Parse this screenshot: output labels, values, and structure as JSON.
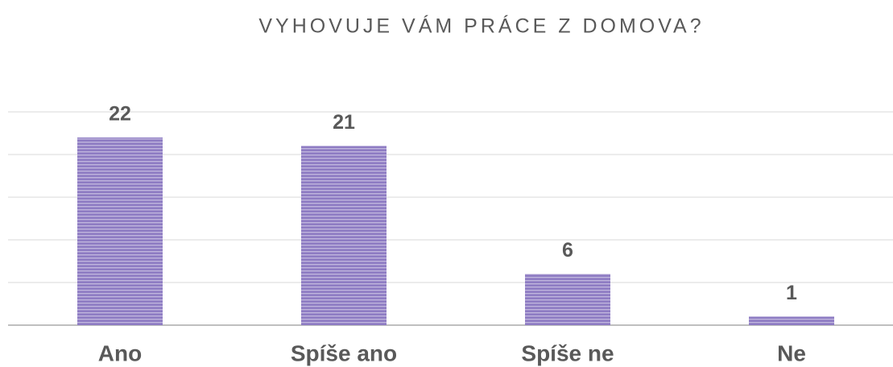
{
  "chart_data": {
    "type": "bar",
    "title": "VYHOVUJE VÁM PRÁCE Z DOMOVA?",
    "categories": [
      "Ano",
      "Spíše ano",
      "Spíše ne",
      "Ne"
    ],
    "values": [
      22,
      21,
      6,
      1
    ],
    "color": "#8e7cc3",
    "ylim": [
      0,
      25
    ],
    "yticks": [
      0,
      5,
      10,
      15,
      20,
      25
    ],
    "grid": true
  }
}
